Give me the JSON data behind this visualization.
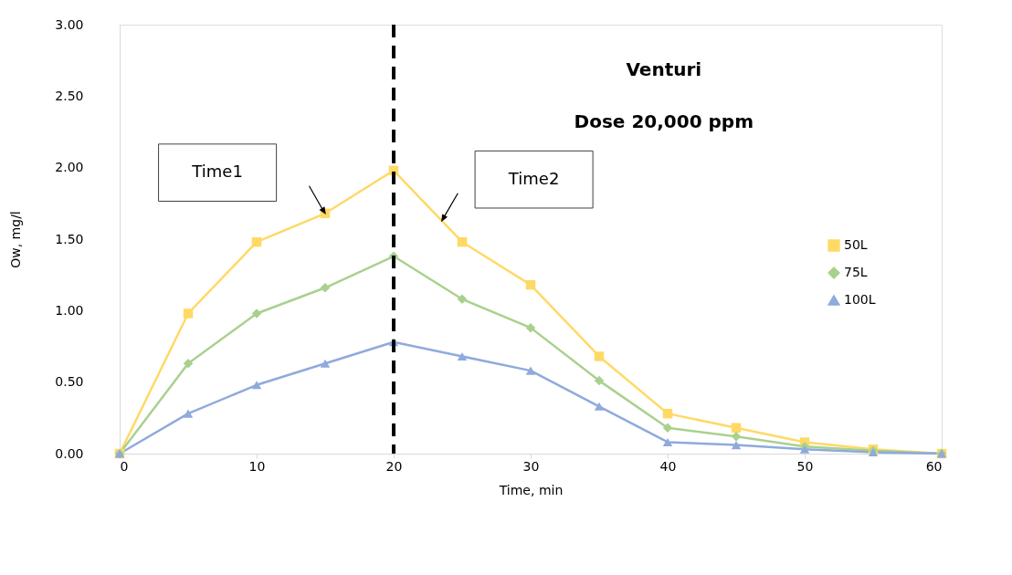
{
  "chart_data": {
    "type": "line",
    "title": "Venturi",
    "subtitle": "Dose 20,000 ppm",
    "xlabel": "Time, min",
    "ylabel": "Ow, mg/l",
    "x": [
      0,
      5,
      10,
      15,
      20,
      25,
      30,
      35,
      40,
      45,
      50,
      55,
      60
    ],
    "series": [
      {
        "name": "50L",
        "color": "#ffd966",
        "marker": "square",
        "values": [
          0,
          0.98,
          1.48,
          1.68,
          1.98,
          1.48,
          1.18,
          0.68,
          0.28,
          0.18,
          0.08,
          0.03,
          0
        ]
      },
      {
        "name": "75L",
        "color": "#a9d18e",
        "marker": "diamond",
        "values": [
          0,
          0.63,
          0.98,
          1.16,
          1.38,
          1.08,
          0.88,
          0.51,
          0.18,
          0.12,
          0.05,
          0.02,
          0
        ]
      },
      {
        "name": "100L",
        "color": "#8faadc",
        "marker": "triangle",
        "values": [
          0,
          0.28,
          0.48,
          0.63,
          0.78,
          0.68,
          0.58,
          0.33,
          0.08,
          0.06,
          0.03,
          0.01,
          0
        ]
      }
    ],
    "xlim": [
      0,
      60
    ],
    "xticks": [
      0,
      10,
      20,
      30,
      40,
      50,
      60
    ],
    "ylim": [
      0,
      3
    ],
    "yticks": [
      {
        "value": 0,
        "label": "0.00"
      },
      {
        "value": 0.5,
        "label": "0.50"
      },
      {
        "value": 1,
        "label": "1.00"
      },
      {
        "value": 1.5,
        "label": "1.50"
      },
      {
        "value": 2,
        "label": "2.00"
      },
      {
        "value": 2.5,
        "label": "2.50"
      },
      {
        "value": 3,
        "label": "3.00"
      }
    ],
    "ref_lines": [
      {
        "axis": "x",
        "value": 20,
        "color": "#000000",
        "line_style": "dashed"
      }
    ],
    "annotations": [
      "Time1",
      "Time2"
    ],
    "grid": false,
    "legend": "right",
    "line_style": "solid"
  }
}
